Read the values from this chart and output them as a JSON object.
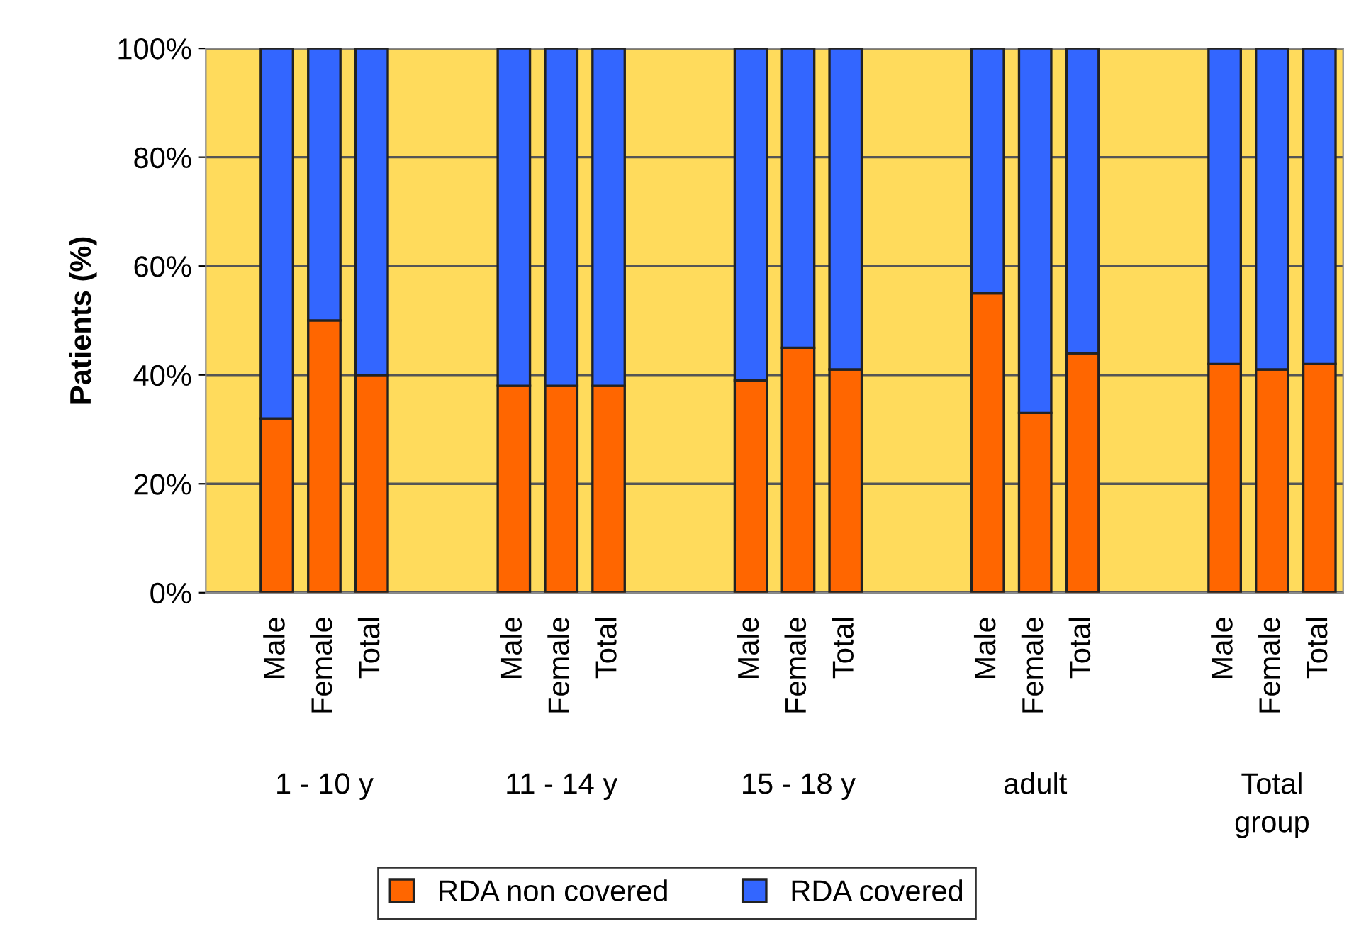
{
  "chart_data": {
    "type": "bar",
    "stacked": true,
    "ylabel": "Patients (%)",
    "categories": [
      "Male",
      "Female",
      "Total",
      null,
      null,
      "Male",
      "Female",
      "Total",
      null,
      null,
      "Male",
      "Female",
      "Total",
      null,
      null,
      "Male",
      "Female",
      "Total",
      null,
      null,
      "Male",
      "Female",
      "Total"
    ],
    "series": [
      {
        "name": "RDA non covered",
        "color": "#ff6600",
        "values": [
          32,
          50,
          40,
          null,
          null,
          38,
          38,
          38,
          null,
          null,
          39,
          45,
          41,
          null,
          null,
          55,
          33,
          44,
          null,
          null,
          42,
          41,
          42
        ]
      },
      {
        "name": "RDA covered",
        "color": "#3366ff",
        "values": [
          68,
          50,
          60,
          null,
          null,
          62,
          62,
          62,
          null,
          null,
          61,
          55,
          59,
          null,
          null,
          45,
          67,
          56,
          null,
          null,
          58,
          59,
          58
        ]
      }
    ],
    "annotations": [
      "1 - 10 y",
      "11 - 14 y",
      "15 - 18 y",
      "adult",
      "Total\ngroup"
    ],
    "ylim": [
      0,
      100
    ],
    "yticks": [
      {
        "value": 0,
        "label": "0%"
      },
      {
        "value": 20,
        "label": "20%"
      },
      {
        "value": 40,
        "label": "40%"
      },
      {
        "value": 60,
        "label": "60%"
      },
      {
        "value": 80,
        "label": "80%"
      },
      {
        "value": 100,
        "label": "100%"
      }
    ],
    "grid": "y",
    "legend": "bottom"
  }
}
